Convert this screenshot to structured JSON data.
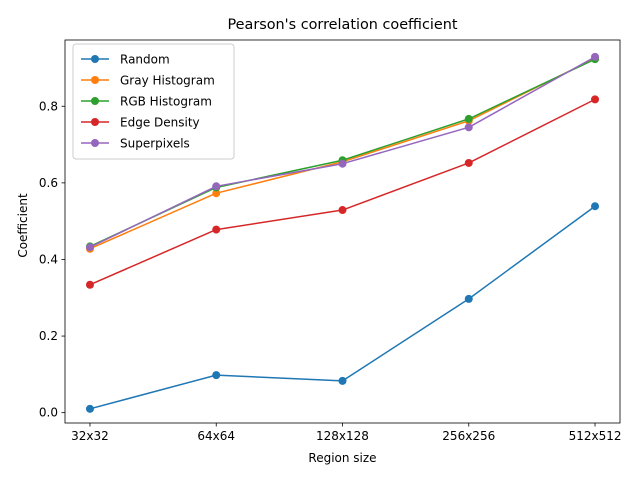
{
  "chart_data": {
    "type": "line",
    "title": "Pearson's correlation coefficient",
    "xlabel": "Region size",
    "ylabel": "Coefficient",
    "categories": [
      "32x32",
      "64x64",
      "128x128",
      "256x256",
      "512x512"
    ],
    "ylim": [
      -0.027,
      0.973
    ],
    "yticks": [
      0.0,
      0.2,
      0.4,
      0.6,
      0.8
    ],
    "ytick_labels": [
      "0.0",
      "0.2",
      "0.4",
      "0.6",
      "0.8"
    ],
    "grid": false,
    "legend_position": "top-left",
    "series": [
      {
        "name": "Random",
        "color": "#1f77b4",
        "values": [
          0.01,
          0.098,
          0.083,
          0.297,
          0.539
        ]
      },
      {
        "name": "Gray Histogram",
        "color": "#ff7f0e",
        "values": [
          0.428,
          0.573,
          0.655,
          0.762,
          0.925
        ]
      },
      {
        "name": "RGB Histogram",
        "color": "#2ca02c",
        "values": [
          0.434,
          0.588,
          0.659,
          0.767,
          0.923
        ]
      },
      {
        "name": "Edge Density",
        "color": "#d62728",
        "values": [
          0.334,
          0.478,
          0.529,
          0.652,
          0.818
        ]
      },
      {
        "name": "Superpixels",
        "color": "#9467bd",
        "values": [
          0.432,
          0.591,
          0.65,
          0.745,
          0.929
        ]
      }
    ]
  }
}
